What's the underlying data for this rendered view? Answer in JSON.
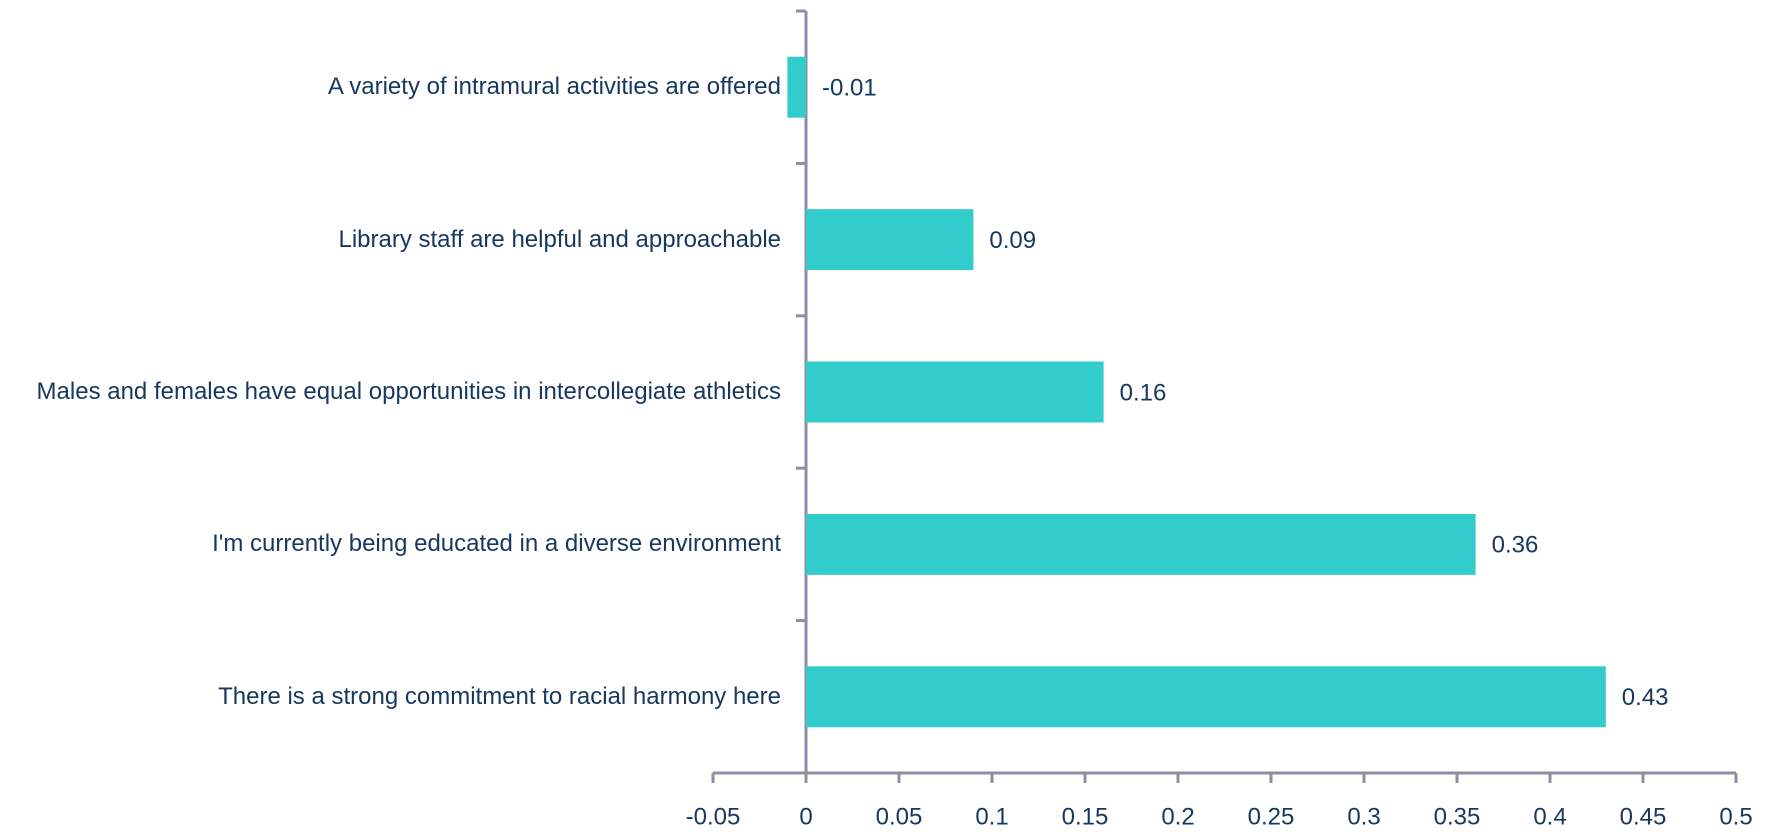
{
  "chart_data": {
    "type": "bar",
    "orientation": "horizontal",
    "categories": [
      "A variety of intramural activities are offered",
      "Library staff are helpful and approachable",
      "Males and females have equal opportunities in intercollegiate athletics",
      "I'm currently being educated in a diverse environment",
      "There is a strong commitment to racial harmony here"
    ],
    "values": [
      -0.01,
      0.09,
      0.16,
      0.36,
      0.43
    ],
    "color": "#33cccc",
    "xlim": [
      -0.05,
      0.5
    ],
    "xticks": [
      -0.05,
      0,
      0.05,
      0.1,
      0.15,
      0.2,
      0.25,
      0.3,
      0.35,
      0.4,
      0.45,
      0.5
    ],
    "grid": false
  }
}
